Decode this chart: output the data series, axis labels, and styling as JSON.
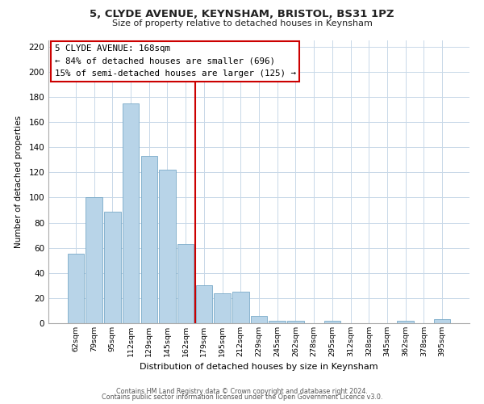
{
  "title": "5, CLYDE AVENUE, KEYNSHAM, BRISTOL, BS31 1PZ",
  "subtitle": "Size of property relative to detached houses in Keynsham",
  "xlabel": "Distribution of detached houses by size in Keynsham",
  "ylabel": "Number of detached properties",
  "bar_labels": [
    "62sqm",
    "79sqm",
    "95sqm",
    "112sqm",
    "129sqm",
    "145sqm",
    "162sqm",
    "179sqm",
    "195sqm",
    "212sqm",
    "229sqm",
    "245sqm",
    "262sqm",
    "278sqm",
    "295sqm",
    "312sqm",
    "328sqm",
    "345sqm",
    "362sqm",
    "378sqm",
    "395sqm"
  ],
  "bar_values": [
    55,
    100,
    89,
    175,
    133,
    122,
    63,
    30,
    24,
    25,
    6,
    2,
    2,
    0,
    2,
    0,
    0,
    0,
    2,
    0,
    3
  ],
  "bar_color": "#b8d4e8",
  "bar_edge_color": "#7aaac8",
  "vline_x": 6.5,
  "vline_color": "#cc0000",
  "annotation_title": "5 CLYDE AVENUE: 168sqm",
  "annotation_line1": "← 84% of detached houses are smaller (696)",
  "annotation_line2": "15% of semi-detached houses are larger (125) →",
  "annotation_box_color": "#ffffff",
  "annotation_box_edge": "#cc0000",
  "ylim": [
    0,
    225
  ],
  "yticks": [
    0,
    20,
    40,
    60,
    80,
    100,
    120,
    140,
    160,
    180,
    200,
    220
  ],
  "footer1": "Contains HM Land Registry data © Crown copyright and database right 2024.",
  "footer2": "Contains public sector information licensed under the Open Government Licence v3.0.",
  "bg_color": "#ffffff",
  "grid_color": "#c8d8e8"
}
